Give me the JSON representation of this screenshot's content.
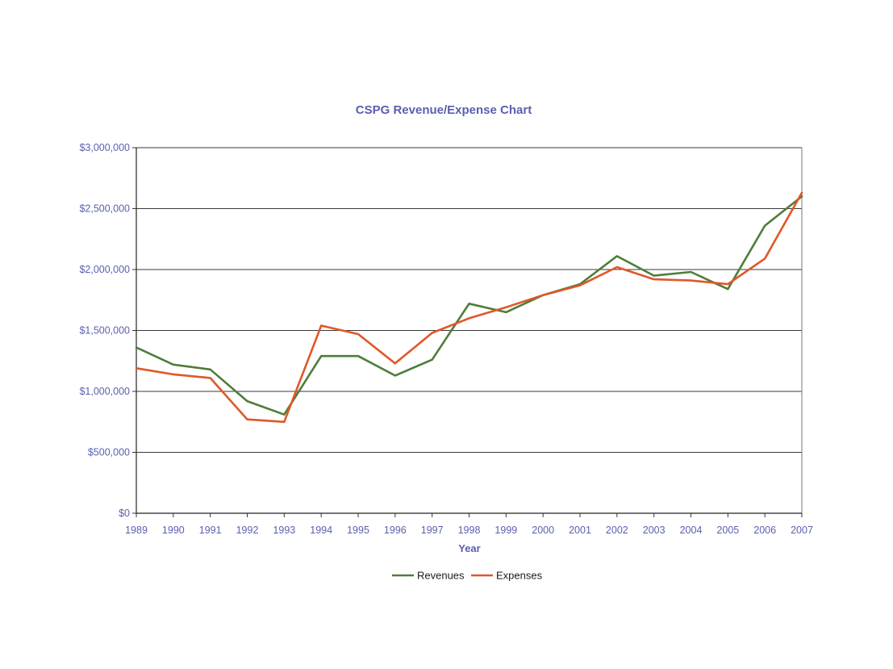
{
  "chart_data": {
    "type": "line",
    "title": "CSPG Revenue/Expense Chart",
    "xlabel": "Year",
    "ylabel": "",
    "categories": [
      "1989",
      "1990",
      "1991",
      "1992",
      "1993",
      "1994",
      "1995",
      "1996",
      "1997",
      "1998",
      "1999",
      "2000",
      "2001",
      "2002",
      "2003",
      "2004",
      "2005",
      "2006",
      "2007"
    ],
    "y_tick_values": [
      0,
      500000,
      1000000,
      1500000,
      2000000,
      2500000,
      3000000
    ],
    "y_tick_labels": [
      "$0",
      "$500,000",
      "$1,000,000",
      "$1,500,000",
      "$2,000,000",
      "$2,500,000",
      "$3,000,000"
    ],
    "ylim": [
      0,
      3000000
    ],
    "grid": true,
    "legend_position": "bottom-center",
    "series": [
      {
        "name": "Revenues",
        "color": "#4e7d3a",
        "values": [
          1360000,
          1220000,
          1180000,
          920000,
          810000,
          1290000,
          1290000,
          1130000,
          1260000,
          1720000,
          1650000,
          1790000,
          1880000,
          2110000,
          1950000,
          1980000,
          1840000,
          2360000,
          2600000
        ]
      },
      {
        "name": "Expenses",
        "color": "#e0572a",
        "values": [
          1190000,
          1140000,
          1110000,
          770000,
          750000,
          1540000,
          1470000,
          1230000,
          1480000,
          1600000,
          1690000,
          1790000,
          1870000,
          2020000,
          1920000,
          1910000,
          1880000,
          2090000,
          2630000
        ]
      }
    ]
  }
}
